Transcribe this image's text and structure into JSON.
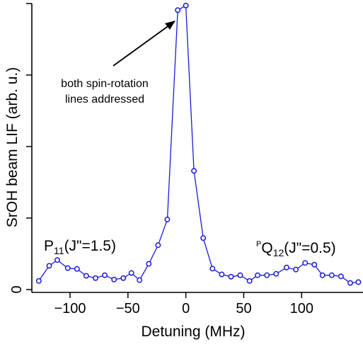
{
  "chart_data": {
    "type": "line",
    "xlabel": "Detuning (MHz)",
    "ylabel": "SrOH beam LIF (arb. u.)",
    "xlim": [
      -133,
      153
    ],
    "ylim": [
      -0.01,
      1.0
    ],
    "x_ticks": [
      -100,
      -50,
      0,
      50,
      100
    ],
    "x_tick_labels": [
      "−100",
      "−50",
      "0",
      "50",
      "100"
    ],
    "y_ticks": [
      0,
      0.25,
      0.5,
      0.75,
      1.0
    ],
    "y_tick_labels": [
      "0",
      "",
      "",
      "",
      ""
    ],
    "grid": false,
    "color": "#1a1adb",
    "series": [
      {
        "x": [
          -127,
          -118,
          -111,
          -102,
          -94,
          -86,
          -78,
          -70,
          -62,
          -54,
          -47,
          -40,
          -32,
          -24,
          -16,
          -7,
          0,
          7,
          15,
          23,
          31,
          39,
          47,
          55,
          62,
          70,
          78,
          87,
          95,
          103,
          111,
          118,
          126,
          134,
          142,
          149
        ],
        "y": [
          0.03,
          0.083,
          0.103,
          0.075,
          0.072,
          0.048,
          0.04,
          0.05,
          0.035,
          0.04,
          0.058,
          0.033,
          0.09,
          0.155,
          0.245,
          0.977,
          0.993,
          0.415,
          0.18,
          0.073,
          0.053,
          0.045,
          0.05,
          0.03,
          0.05,
          0.05,
          0.055,
          0.077,
          0.07,
          0.093,
          0.087,
          0.05,
          0.05,
          0.046,
          0.023,
          0.026
        ]
      }
    ],
    "annotations": [
      {
        "text": "both spin-rotation\nlines addressed",
        "arrow_to": [
          -7,
          0.977
        ]
      }
    ]
  },
  "labels": {
    "p11_main": "P",
    "p11_sub": "11",
    "p11_rest": "(J\"=1.5)",
    "q12_sup": "P",
    "q12_main": "Q",
    "q12_sub": "12",
    "q12_rest": "(J\"=0.5)",
    "annot_line1": "both spin-rotation",
    "annot_line2": "lines addressed"
  }
}
